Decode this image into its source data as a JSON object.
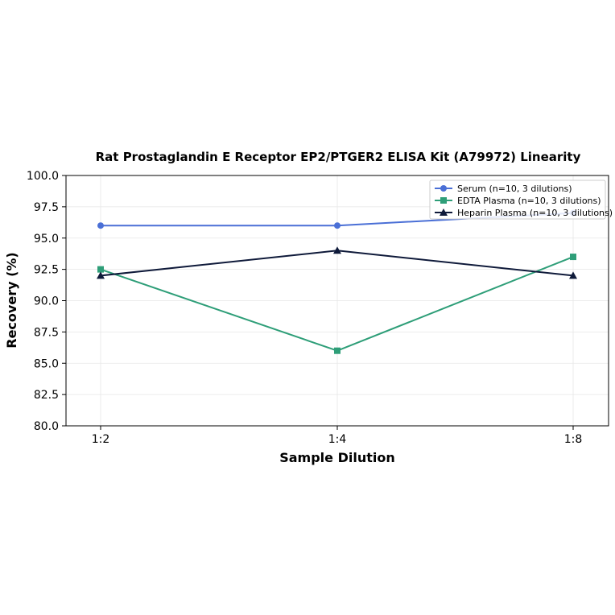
{
  "chart_data": {
    "type": "line",
    "title": "Rat Prostaglandin E Receptor EP2/PTGER2 ELISA Kit (A79972) Linearity",
    "xlabel": "Sample Dilution",
    "ylabel": "Recovery (%)",
    "categories": [
      "1:2",
      "1:4",
      "1:8"
    ],
    "ylim": [
      80.0,
      100.0
    ],
    "yticks": [
      "80.0",
      "82.5",
      "85.0",
      "87.5",
      "90.0",
      "92.5",
      "95.0",
      "97.5",
      "100.0"
    ],
    "grid": true,
    "legend_position": "top-right",
    "series": [
      {
        "name": "Serum (n=10, 3 dilutions)",
        "values": [
          96.0,
          96.0,
          97.0
        ],
        "color": "#4a6fd6",
        "marker": "circle"
      },
      {
        "name": "EDTA Plasma (n=10, 3 dilutions)",
        "values": [
          92.5,
          86.0,
          93.5
        ],
        "color": "#2e9e78",
        "marker": "square"
      },
      {
        "name": "Heparin Plasma (n=10, 3 dilutions)",
        "values": [
          92.0,
          94.0,
          92.0
        ],
        "color": "#0f1a3a",
        "marker": "triangle"
      }
    ]
  }
}
